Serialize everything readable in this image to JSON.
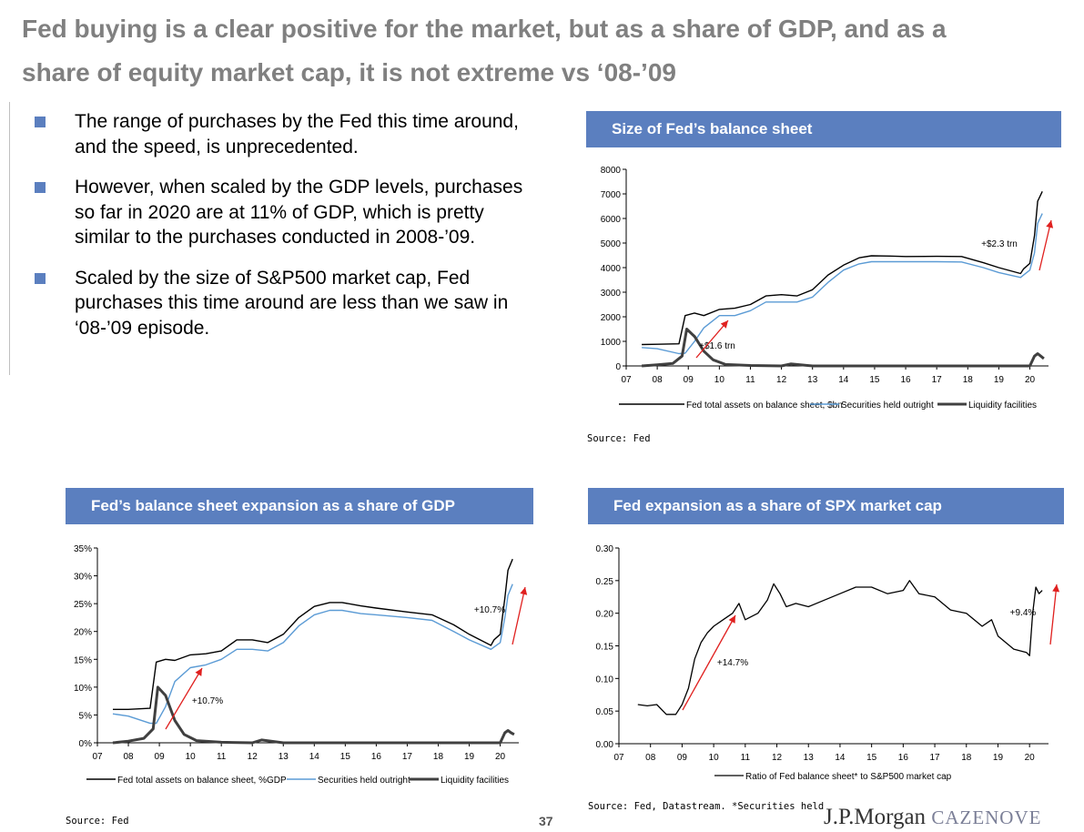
{
  "title": {
    "line1": "Fed buying is a clear positive for the market, but as a share of GDP, and as a",
    "line2": "share of equity market cap, it is not extreme vs ‘08-’09"
  },
  "bullets": [
    "The range of purchases by the Fed this time around, and the speed, is unprecedented.",
    "However, when scaled by the GDP levels, purchases so far in 2020 are at 11% of GDP, which is pretty similar to the purchases conducted in 2008-’09.",
    "Scaled by the size of S&P500 market cap, Fed purchases this time around are less than we saw in ‘08-’09 episode."
  ],
  "colors": {
    "accent": "#5b7fbf",
    "title_gray": "#808080",
    "series_total": "#000000",
    "series_securities": "#5b9bd5",
    "series_liquidity": "#404040",
    "arrow": "#e0201f"
  },
  "footer": {
    "page_number": "37",
    "logo_main": "J.P.Morgan",
    "logo_sub": "CAZENOVE"
  },
  "chart_data": [
    {
      "type": "line",
      "header": "Size of Fed’s balance sheet",
      "source": "Source: Fed",
      "x_ticks": [
        "07",
        "08",
        "09",
        "10",
        "11",
        "12",
        "13",
        "14",
        "15",
        "16",
        "17",
        "18",
        "19",
        "20"
      ],
      "y_ticks": [
        "0",
        "1000",
        "2000",
        "3000",
        "4000",
        "5000",
        "6000",
        "7000",
        "8000"
      ],
      "ylim": [
        0,
        8000
      ],
      "annotations": [
        "+$1.6 trn",
        "+$2.3 trn"
      ],
      "series": [
        {
          "name": "Fed total assets on balance sheet, $bn",
          "x": [
            2007.5,
            2008.0,
            2008.7,
            2008.9,
            2009.2,
            2009.5,
            2010.0,
            2010.5,
            2011.0,
            2011.5,
            2012.0,
            2012.5,
            2013.0,
            2013.5,
            2014.0,
            2014.5,
            2014.9,
            2015.5,
            2016.0,
            2017.0,
            2017.8,
            2018.5,
            2019.0,
            2019.7,
            2019.8,
            2020.0,
            2020.15,
            2020.25,
            2020.4
          ],
          "y": [
            870,
            880,
            900,
            2050,
            2150,
            2050,
            2300,
            2350,
            2500,
            2850,
            2900,
            2850,
            3100,
            3700,
            4100,
            4400,
            4480,
            4470,
            4450,
            4460,
            4450,
            4200,
            4000,
            3760,
            3950,
            4170,
            5300,
            6700,
            7100
          ]
        },
        {
          "name": "Securities held outright",
          "x": [
            2007.5,
            2008.0,
            2008.7,
            2008.9,
            2009.2,
            2009.5,
            2010.0,
            2010.5,
            2011.0,
            2011.5,
            2012.0,
            2012.5,
            2013.0,
            2013.5,
            2014.0,
            2014.5,
            2014.9,
            2015.5,
            2016.0,
            2017.0,
            2017.8,
            2018.5,
            2019.0,
            2019.7,
            2019.8,
            2020.0,
            2020.15,
            2020.25,
            2020.4
          ],
          "y": [
            750,
            700,
            500,
            520,
            1000,
            1550,
            2050,
            2050,
            2250,
            2600,
            2600,
            2600,
            2800,
            3400,
            3900,
            4150,
            4240,
            4240,
            4240,
            4240,
            4230,
            4000,
            3800,
            3600,
            3700,
            3900,
            4600,
            5800,
            6200
          ]
        },
        {
          "name": "Liquidity facilities",
          "x": [
            2007.5,
            2008.0,
            2008.5,
            2008.8,
            2008.95,
            2009.2,
            2009.5,
            2009.8,
            2010.2,
            2011.0,
            2012.0,
            2012.3,
            2013.0,
            2019.0,
            2020.0,
            2020.15,
            2020.25,
            2020.35,
            2020.45
          ],
          "y": [
            0,
            50,
            100,
            400,
            1500,
            1200,
            600,
            250,
            60,
            20,
            0,
            80,
            0,
            0,
            0,
            400,
            500,
            400,
            300
          ]
        }
      ]
    },
    {
      "type": "line",
      "header": "Fed’s balance sheet expansion as a share of GDP",
      "source": "Source: Fed",
      "x_ticks": [
        "07",
        "08",
        "09",
        "10",
        "11",
        "12",
        "13",
        "14",
        "15",
        "16",
        "17",
        "18",
        "19",
        "20"
      ],
      "y_ticks": [
        "0%",
        "5%",
        "10%",
        "15%",
        "20%",
        "25%",
        "30%",
        "35%"
      ],
      "ylim": [
        0,
        35
      ],
      "annotations": [
        "+10.7%",
        "+10.7%"
      ],
      "series": [
        {
          "name": "Fed total assets on balance sheet, %GDP",
          "x": [
            2007.5,
            2008.0,
            2008.7,
            2008.9,
            2009.2,
            2009.5,
            2010.0,
            2010.5,
            2011.0,
            2011.5,
            2012.0,
            2012.5,
            2013.0,
            2013.5,
            2014.0,
            2014.5,
            2014.9,
            2015.5,
            2016.0,
            2017.0,
            2017.8,
            2018.5,
            2019.0,
            2019.7,
            2019.8,
            2020.0,
            2020.15,
            2020.25,
            2020.4
          ],
          "y": [
            6,
            6,
            6.2,
            14.5,
            15,
            14.8,
            15.8,
            16,
            16.5,
            18.5,
            18.5,
            18,
            19.5,
            22.5,
            24.5,
            25.2,
            25.2,
            24.6,
            24.2,
            23.5,
            23,
            21.2,
            19.5,
            17.5,
            18.5,
            19.5,
            26,
            31,
            33
          ]
        },
        {
          "name": "Securities held outright",
          "x": [
            2007.5,
            2008.0,
            2008.7,
            2008.9,
            2009.2,
            2009.5,
            2010.0,
            2010.5,
            2011.0,
            2011.5,
            2012.0,
            2012.5,
            2013.0,
            2013.5,
            2014.0,
            2014.5,
            2014.9,
            2015.5,
            2016.0,
            2017.0,
            2017.8,
            2018.5,
            2019.0,
            2019.7,
            2019.8,
            2020.0,
            2020.15,
            2020.25,
            2020.4
          ],
          "y": [
            5.2,
            4.8,
            3.5,
            3.5,
            6.5,
            11,
            13.5,
            14,
            15,
            16.8,
            16.8,
            16.5,
            18,
            21,
            23,
            23.8,
            23.8,
            23.2,
            23,
            22.5,
            22,
            20,
            18.5,
            16.8,
            17.2,
            18,
            22.5,
            26.5,
            28.5
          ]
        },
        {
          "name": "Liquidity facilities",
          "x": [
            2007.5,
            2008.0,
            2008.5,
            2008.8,
            2008.95,
            2009.2,
            2009.5,
            2009.8,
            2010.2,
            2011.0,
            2012.0,
            2012.3,
            2013.0,
            2019.0,
            2020.0,
            2020.15,
            2020.25,
            2020.35,
            2020.45
          ],
          "y": [
            0,
            0.3,
            0.8,
            2.5,
            10,
            8.5,
            4,
            1.5,
            0.4,
            0.1,
            0,
            0.5,
            0,
            0,
            0,
            1.8,
            2.2,
            1.8,
            1.5
          ]
        }
      ]
    },
    {
      "type": "line",
      "header": "Fed expansion as a share of SPX market cap",
      "source": "Source: Fed, Datastream. *Securities held",
      "x_ticks": [
        "07",
        "08",
        "09",
        "10",
        "11",
        "12",
        "13",
        "14",
        "15",
        "16",
        "17",
        "18",
        "19",
        "20"
      ],
      "y_ticks": [
        "0.00",
        "0.05",
        "0.10",
        "0.15",
        "0.20",
        "0.25",
        "0.30"
      ],
      "ylim": [
        0,
        0.3
      ],
      "annotations": [
        "+14.7%",
        "+9.4%"
      ],
      "series": [
        {
          "name": "Ratio of Fed balance sheet* to S&P500 market cap",
          "x": [
            2007.6,
            2007.9,
            2008.2,
            2008.5,
            2008.8,
            2009.0,
            2009.2,
            2009.4,
            2009.6,
            2009.8,
            2010.0,
            2010.3,
            2010.6,
            2010.8,
            2011.0,
            2011.4,
            2011.7,
            2011.9,
            2012.1,
            2012.3,
            2012.6,
            2013.0,
            2013.5,
            2014.0,
            2014.5,
            2015.0,
            2015.5,
            2016.0,
            2016.2,
            2016.5,
            2017.0,
            2017.5,
            2018.0,
            2018.5,
            2018.8,
            2019.0,
            2019.5,
            2019.9,
            2020.0,
            2020.1,
            2020.2,
            2020.3,
            2020.4
          ],
          "y": [
            0.06,
            0.058,
            0.06,
            0.045,
            0.045,
            0.06,
            0.085,
            0.13,
            0.155,
            0.17,
            0.18,
            0.19,
            0.2,
            0.215,
            0.19,
            0.2,
            0.22,
            0.245,
            0.23,
            0.21,
            0.215,
            0.21,
            0.22,
            0.23,
            0.24,
            0.24,
            0.23,
            0.235,
            0.25,
            0.23,
            0.225,
            0.205,
            0.2,
            0.18,
            0.19,
            0.165,
            0.145,
            0.14,
            0.135,
            0.2,
            0.24,
            0.23,
            0.235
          ]
        }
      ]
    }
  ]
}
